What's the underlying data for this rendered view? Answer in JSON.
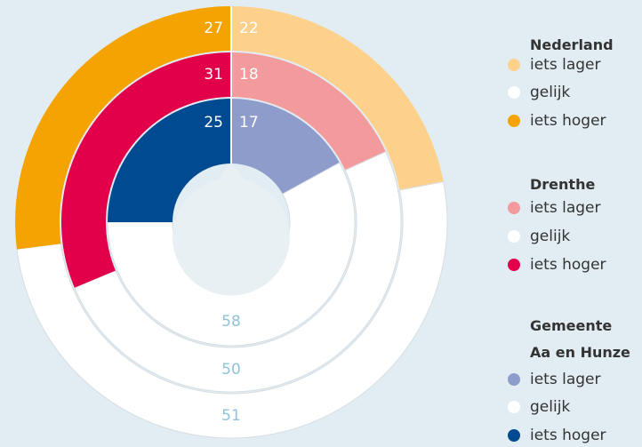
{
  "chart_data": {
    "type": "pie",
    "categories": [
      "iets lager",
      "gelijk",
      "iets hoger"
    ],
    "series": [
      {
        "name": "Nederland",
        "values": [
          22,
          51,
          27
        ],
        "colors": [
          "#fdd18c",
          "#ffffff",
          "#f5a300"
        ]
      },
      {
        "name": "Drenthe",
        "values": [
          18,
          50,
          31
        ],
        "colors": [
          "#f29a9c",
          "#ffffff",
          "#e2004a"
        ]
      },
      {
        "name": "Gemeente\nAa en Hunze",
        "values": [
          17,
          58,
          25
        ],
        "colors": [
          "#8e9ccb",
          "#ffffff",
          "#004a92"
        ]
      }
    ]
  }
}
